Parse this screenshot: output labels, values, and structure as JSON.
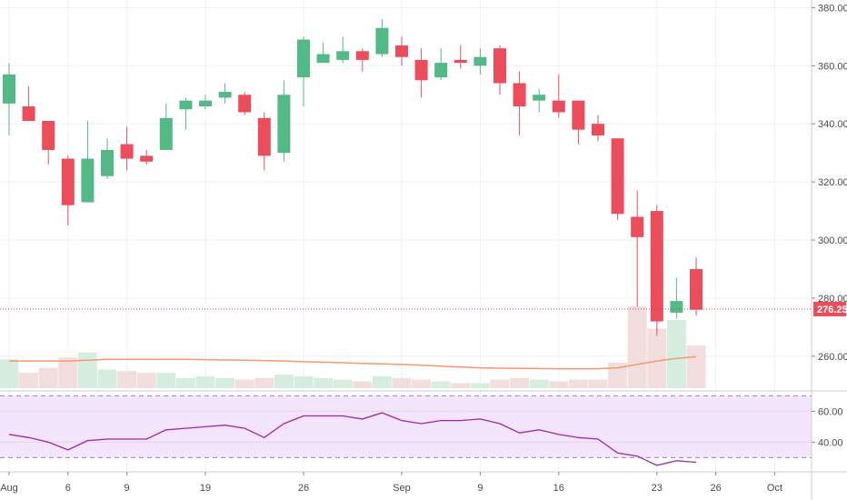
{
  "chart_data": {
    "type": "candlestick",
    "colors": {
      "up": "#53b987",
      "down": "#eb4d5c",
      "vol_up": "#d6eedf",
      "vol_down": "#f2dede",
      "vol_ma": "#f59a6a",
      "rsi_line": "#9c27b0",
      "rsi_band": "#f3e5fb",
      "grid": "#eef1f5",
      "price_line": "#e03a4c",
      "price_label_bg": "#eb4d5c"
    },
    "price_axis": {
      "ticks": [
        260,
        280,
        300,
        320,
        340,
        360,
        380
      ],
      "tick_labels": [
        "260.00",
        "280.00",
        "300.00",
        "320.00",
        "340.00",
        "360.00",
        "380.00"
      ],
      "range": [
        249,
        382
      ]
    },
    "time_axis": {
      "ticks": [
        {
          "index": 0,
          "label": "Aug"
        },
        {
          "index": 3,
          "label": "6"
        },
        {
          "index": 6,
          "label": "9"
        },
        {
          "index": 10,
          "label": "19"
        },
        {
          "index": 15,
          "label": "26"
        },
        {
          "index": 20,
          "label": "Sep"
        },
        {
          "index": 24,
          "label": "9"
        },
        {
          "index": 28,
          "label": "16"
        },
        {
          "index": 33,
          "label": "23"
        },
        {
          "index": 36,
          "label": "26"
        },
        {
          "index": 39,
          "label": "Oct"
        }
      ]
    },
    "current_price": {
      "value": 276.25,
      "label": "276.25"
    },
    "candles": [
      {
        "o": 347,
        "h": 361,
        "l": 336,
        "c": 357
      },
      {
        "o": 346,
        "h": 353,
        "l": 341,
        "c": 341
      },
      {
        "o": 341,
        "h": 341,
        "l": 326,
        "c": 331
      },
      {
        "o": 328,
        "h": 329,
        "l": 305,
        "c": 312
      },
      {
        "o": 313,
        "h": 341,
        "l": 313,
        "c": 328
      },
      {
        "o": 322,
        "h": 335,
        "l": 321,
        "c": 331
      },
      {
        "o": 333,
        "h": 339,
        "l": 324,
        "c": 328
      },
      {
        "o": 329,
        "h": 331,
        "l": 326,
        "c": 327
      },
      {
        "o": 331,
        "h": 347,
        "l": 331,
        "c": 342
      },
      {
        "o": 345,
        "h": 349,
        "l": 338,
        "c": 348
      },
      {
        "o": 346,
        "h": 350,
        "l": 345,
        "c": 348
      },
      {
        "o": 349,
        "h": 354,
        "l": 347,
        "c": 351
      },
      {
        "o": 350,
        "h": 351,
        "l": 343,
        "c": 344
      },
      {
        "o": 342,
        "h": 344,
        "l": 324,
        "c": 329
      },
      {
        "o": 330,
        "h": 355,
        "l": 327,
        "c": 350
      },
      {
        "o": 356,
        "h": 370,
        "l": 346,
        "c": 369
      },
      {
        "o": 361,
        "h": 368,
        "l": 361,
        "c": 364
      },
      {
        "o": 362,
        "h": 370,
        "l": 361,
        "c": 365
      },
      {
        "o": 365,
        "h": 366,
        "l": 358,
        "c": 362
      },
      {
        "o": 364,
        "h": 376,
        "l": 363,
        "c": 373
      },
      {
        "o": 367,
        "h": 370,
        "l": 360,
        "c": 363
      },
      {
        "o": 362,
        "h": 366,
        "l": 349,
        "c": 355
      },
      {
        "o": 356,
        "h": 366,
        "l": 355,
        "c": 361
      },
      {
        "o": 362,
        "h": 367,
        "l": 359,
        "c": 361
      },
      {
        "o": 360,
        "h": 366,
        "l": 357,
        "c": 363
      },
      {
        "o": 366,
        "h": 367,
        "l": 350,
        "c": 354
      },
      {
        "o": 354,
        "h": 358,
        "l": 336,
        "c": 346
      },
      {
        "o": 348,
        "h": 352,
        "l": 344,
        "c": 350
      },
      {
        "o": 348,
        "h": 357,
        "l": 342,
        "c": 344
      },
      {
        "o": 348,
        "h": 348,
        "l": 333,
        "c": 338
      },
      {
        "o": 340,
        "h": 343,
        "l": 334,
        "c": 336
      },
      {
        "o": 335,
        "h": 335,
        "l": 307,
        "c": 309
      },
      {
        "o": 308,
        "h": 317,
        "l": 277,
        "c": 301
      },
      {
        "o": 310,
        "h": 312,
        "l": 267,
        "c": 272
      },
      {
        "o": 275,
        "h": 287,
        "l": 273,
        "c": 279
      },
      {
        "o": 290,
        "h": 294,
        "l": 274,
        "c": 276
      }
    ],
    "volume": {
      "values": [
        17,
        9,
        12,
        18,
        21,
        11,
        10,
        9,
        9,
        6,
        7,
        6,
        5,
        6,
        8,
        7,
        6,
        5,
        4,
        7,
        6,
        5,
        4,
        3,
        3,
        5,
        6,
        5,
        4,
        5,
        5,
        15,
        48,
        35,
        40,
        25
      ],
      "ma": [
        9,
        9,
        9,
        9,
        9.5,
        10,
        10,
        10,
        10,
        10,
        9.8,
        9.6,
        9.5,
        9.3,
        9,
        8.6,
        8.3,
        8,
        7.6,
        7.3,
        7,
        6.5,
        6,
        5.5,
        5,
        4.8,
        4.7,
        4.6,
        4.5,
        4.5,
        4.5,
        5,
        7,
        9,
        10.5,
        11.5
      ]
    },
    "rsi": {
      "ticks": [
        40,
        60
      ],
      "tick_labels": [
        "40.00",
        "60.00"
      ],
      "range": [
        22,
        72
      ],
      "upper": 70,
      "lower": 30,
      "values": [
        45,
        43,
        40,
        35,
        41,
        42,
        42,
        42,
        48,
        49,
        50,
        51,
        49,
        43,
        52,
        57,
        57,
        57,
        55,
        59,
        54,
        52,
        54,
        54,
        55,
        52,
        46,
        48,
        45,
        43,
        42,
        33,
        31,
        25,
        28,
        27
      ]
    }
  }
}
